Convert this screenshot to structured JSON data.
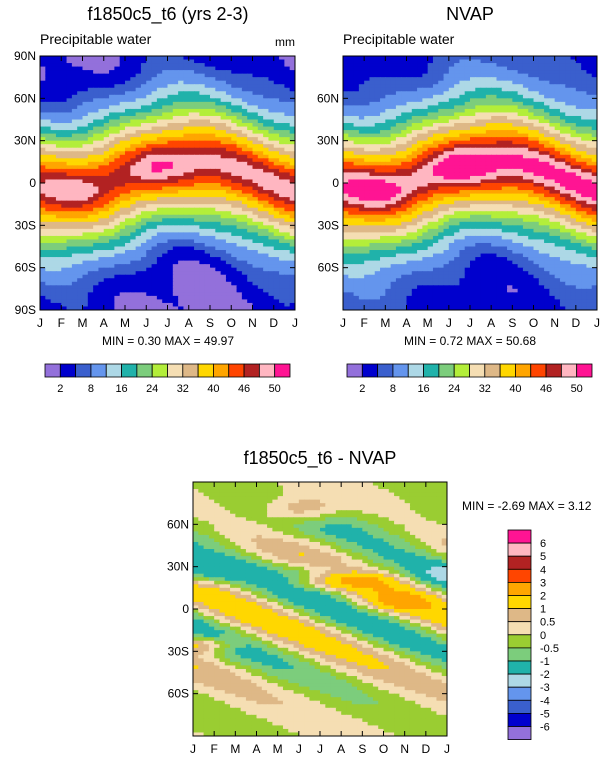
{
  "palettes": {
    "absolute": [
      "#9370DB",
      "#0000CD",
      "#3A5FCD",
      "#6495ED",
      "#ADD8E6",
      "#20B2AA",
      "#7CCD7C",
      "#B3EE3A",
      "#F5DEB3",
      "#DEB887",
      "#FFD700",
      "#FFA500",
      "#FF4500",
      "#B22222",
      "#FFB6C1",
      "#FF1493"
    ],
    "difference": [
      "#9370DB",
      "#0000CD",
      "#3A5FCD",
      "#6495ED",
      "#ADD8E6",
      "#20B2AA",
      "#7CCD7C",
      "#9ACD32",
      "#F5DEB3",
      "#DEB887",
      "#FFD700",
      "#FFA500",
      "#FF4500",
      "#B22222",
      "#FFB6C1",
      "#FF1493"
    ]
  },
  "chart_data": [
    {
      "type": "heatmap",
      "title": "f1850c5_t6 (yrs 2-3)",
      "left_string": "Precipitable water",
      "right_string": "mm",
      "x_tick_labels": [
        "J",
        "F",
        "M",
        "A",
        "M",
        "J",
        "J",
        "A",
        "S",
        "O",
        "N",
        "D",
        "J"
      ],
      "y_tick_labels": [
        "90N",
        "60N",
        "30N",
        "0",
        "30S",
        "60S",
        "90S"
      ],
      "y_tick_values": [
        90,
        60,
        30,
        0,
        -30,
        -60,
        -90
      ],
      "stats_label": "MIN =   0.30 MAX =  49.97",
      "min": 0.3,
      "max": 49.97,
      "levels": [
        2,
        5,
        8,
        12,
        16,
        20,
        24,
        28,
        32,
        36,
        40,
        43,
        46,
        48,
        50
      ],
      "level_labels": [
        "2",
        "8",
        "16",
        "24",
        "32",
        "40",
        "46",
        "50"
      ],
      "model": {
        "equator_value": 48,
        "midlat_value": 26,
        "pole_value": 2,
        "itcz_peak_lat": 15,
        "itcz_trough_lat": -5
      }
    },
    {
      "type": "heatmap",
      "title": "NVAP",
      "left_string": "Precipitable water",
      "right_string": "",
      "x_tick_labels": [
        "J",
        "F",
        "M",
        "A",
        "M",
        "J",
        "J",
        "A",
        "S",
        "O",
        "N",
        "D",
        "J"
      ],
      "y_tick_labels": [
        "60N",
        "30N",
        "0",
        "30S",
        "60S"
      ],
      "y_tick_values": [
        60,
        30,
        0,
        -30,
        -60
      ],
      "stats_label": "MIN =   0.72 MAX =  50.68",
      "min": 0.72,
      "max": 50.68,
      "levels": [
        2,
        5,
        8,
        12,
        16,
        20,
        24,
        28,
        32,
        36,
        40,
        43,
        46,
        48,
        50
      ],
      "level_labels": [
        "2",
        "8",
        "16",
        "24",
        "32",
        "40",
        "46",
        "50"
      ],
      "model": {
        "equator_value": 50,
        "midlat_value": 26,
        "pole_value": 4,
        "itcz_peak_lat": 15,
        "itcz_trough_lat": -5
      }
    },
    {
      "type": "heatmap",
      "title": "f1850c5_t6 - NVAP",
      "left_string": "",
      "right_string": "",
      "x_tick_labels": [
        "J",
        "F",
        "M",
        "A",
        "M",
        "J",
        "J",
        "A",
        "S",
        "O",
        "N",
        "D",
        "J"
      ],
      "y_tick_labels": [
        "60N",
        "30N",
        "0",
        "30S",
        "60S"
      ],
      "y_tick_values": [
        60,
        30,
        0,
        -30,
        -60
      ],
      "stats_label": "MIN =  -2.69 MAX =   3.12",
      "min": -2.69,
      "max": 3.12,
      "levels": [
        -6,
        -5,
        -4,
        -3,
        -2,
        -1,
        -0.5,
        0,
        0.5,
        1,
        2,
        3,
        4,
        5,
        6
      ],
      "level_labels": [
        "6",
        "5",
        "4",
        "3",
        "2",
        "1",
        "0.5",
        "0",
        "-0.5",
        "-1",
        "-2",
        "-3",
        "-4",
        "-5",
        "-6"
      ],
      "model": {
        "itcz_peak_lat": 15,
        "itcz_trough_lat": -5
      }
    }
  ]
}
